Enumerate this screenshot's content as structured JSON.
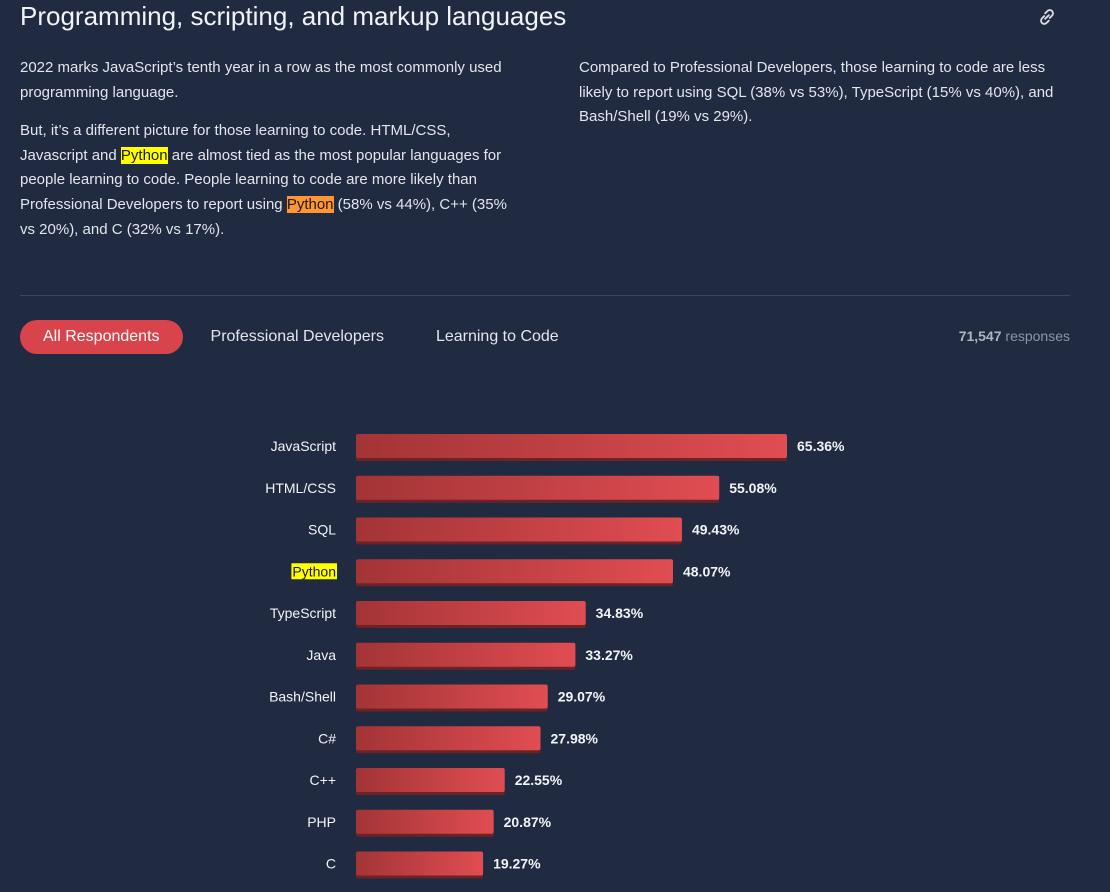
{
  "header": {
    "title": "Programming, scripting, and markup languages",
    "link_icon": "link-icon"
  },
  "intro": {
    "left_p1": "2022 marks JavaScript’s tenth year in a row as the most commonly used programming language.",
    "left_p2": {
      "a": "But, it’s a different picture for those learning to code. HTML/CSS, Javascript and ",
      "hl1": "Python",
      "b": " are almost tied as the most popular languages for people learning to code. People learning to code are more likely than Professional Developers to report using ",
      "hl2": "Python",
      "c": " (58% vs 44%), C++ (35% vs 20%), and C (32% vs 17%)."
    },
    "right_p1": "Compared to Professional Developers, those learning to code are less likely to report using SQL (38% vs 53%), TypeScript (15% vs 40%), and Bash/Shell (19% vs 29%)."
  },
  "tabs": [
    {
      "label": "All Respondents",
      "active": true
    },
    {
      "label": "Professional Developers",
      "active": false
    },
    {
      "label": "Learning to Code",
      "active": false
    }
  ],
  "responses": {
    "count": "71,547",
    "suffix": "responses"
  },
  "colors": {
    "background": "#202a40",
    "accent": "#d9434b",
    "bar_start": "#a33436",
    "bar_end": "#e04d52",
    "highlight_yellow": "#ffff00",
    "highlight_orange": "#ff9632"
  },
  "chart_data": {
    "type": "bar",
    "orientation": "horizontal",
    "categories": [
      "JavaScript",
      "HTML/CSS",
      "SQL",
      "Python",
      "TypeScript",
      "Java",
      "Bash/Shell",
      "C#",
      "C++",
      "PHP",
      "C"
    ],
    "values": [
      65.36,
      55.08,
      49.43,
      48.07,
      34.83,
      33.27,
      29.07,
      27.98,
      22.55,
      20.87,
      19.27
    ],
    "value_labels": [
      "65.36%",
      "55.08%",
      "49.43%",
      "48.07%",
      "34.83%",
      "33.27%",
      "29.07%",
      "27.98%",
      "22.55%",
      "20.87%",
      "19.27%"
    ],
    "highlighted_category": "Python",
    "unit": "%",
    "xlim": [
      0,
      100
    ],
    "title": "",
    "xlabel": "",
    "ylabel": ""
  }
}
